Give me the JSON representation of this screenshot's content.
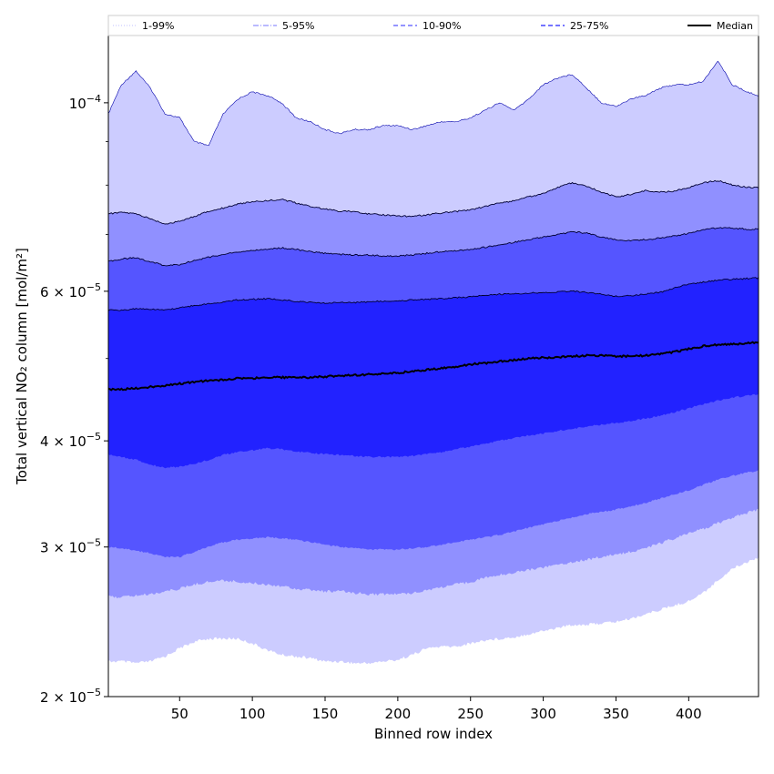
{
  "chart_data": {
    "type": "area",
    "title": "",
    "xlabel": "Binned row index",
    "ylabel": "Total vertical NO₂ column [mol/m²]",
    "xlim": [
      1,
      448
    ],
    "ylim": [
      2e-05,
      0.00012
    ],
    "y_scale": "log",
    "x_ticks": [
      50,
      100,
      150,
      200,
      250,
      300,
      350,
      400
    ],
    "y_major_ticks": [
      {
        "value": 0.0001,
        "mantissa": "",
        "exponent": "−4",
        "base": "10"
      },
      {
        "value": 6e-05,
        "mantissa": "6 × ",
        "exponent": "−5",
        "base": "10"
      },
      {
        "value": 4e-05,
        "mantissa": "4 × ",
        "exponent": "−5",
        "base": "10"
      },
      {
        "value": 3e-05,
        "mantissa": "3 × ",
        "exponent": "−5",
        "base": "10"
      },
      {
        "value": 2e-05,
        "mantissa": "2 × ",
        "exponent": "−5",
        "base": "10"
      }
    ],
    "y_minor_ticks": [
      5e-05,
      7e-05,
      8e-05,
      9e-05
    ],
    "x": [
      1,
      10,
      20,
      30,
      40,
      50,
      60,
      70,
      80,
      90,
      100,
      110,
      120,
      130,
      140,
      150,
      160,
      170,
      180,
      190,
      200,
      210,
      220,
      230,
      240,
      250,
      260,
      270,
      280,
      290,
      300,
      310,
      320,
      330,
      340,
      350,
      360,
      370,
      380,
      390,
      400,
      410,
      420,
      430,
      440,
      448
    ],
    "bands": [
      {
        "name": "1-99%",
        "color": "#ccccff",
        "lower": [
          2.2e-05,
          2.2e-05,
          2.19e-05,
          2.2e-05,
          2.23e-05,
          2.28e-05,
          2.32e-05,
          2.34e-05,
          2.34e-05,
          2.34e-05,
          2.31e-05,
          2.27e-05,
          2.24e-05,
          2.23e-05,
          2.22e-05,
          2.2e-05,
          2.2e-05,
          2.19e-05,
          2.19e-05,
          2.2e-05,
          2.21e-05,
          2.24e-05,
          2.28e-05,
          2.29e-05,
          2.29e-05,
          2.31e-05,
          2.33e-05,
          2.34e-05,
          2.35e-05,
          2.37e-05,
          2.39e-05,
          2.41e-05,
          2.43e-05,
          2.43e-05,
          2.44e-05,
          2.45e-05,
          2.47e-05,
          2.5e-05,
          2.53e-05,
          2.56e-05,
          2.59e-05,
          2.65e-05,
          2.74e-05,
          2.83e-05,
          2.88e-05,
          2.92e-05
        ],
        "upper": [
          9.7e-05,
          0.000105,
          0.000109,
          0.000104,
          9.7e-05,
          9.6e-05,
          9e-05,
          8.9e-05,
          9.7e-05,
          0.000101,
          0.000103,
          0.000102,
          0.0001,
          9.6e-05,
          9.5e-05,
          9.3e-05,
          9.2e-05,
          9.3e-05,
          9.3e-05,
          9.4e-05,
          9.4e-05,
          9.3e-05,
          9.4e-05,
          9.5e-05,
          9.5e-05,
          9.6e-05,
          9.8e-05,
          0.0001,
          9.8e-05,
          0.000101,
          0.000105,
          0.000107,
          0.000108,
          0.000104,
          0.0001,
          9.9e-05,
          0.000101,
          0.000102,
          0.000104,
          0.000105,
          0.000105,
          0.000106,
          0.000112,
          0.000105,
          0.000103,
          0.000102
        ]
      },
      {
        "name": "5-95%",
        "color": "#9090ff",
        "lower": [
          2.62e-05,
          2.62e-05,
          2.63e-05,
          2.64e-05,
          2.66e-05,
          2.68e-05,
          2.71e-05,
          2.73e-05,
          2.74e-05,
          2.73e-05,
          2.72e-05,
          2.71e-05,
          2.7e-05,
          2.68e-05,
          2.67e-05,
          2.66e-05,
          2.66e-05,
          2.65e-05,
          2.64e-05,
          2.64e-05,
          2.64e-05,
          2.65e-05,
          2.67e-05,
          2.69e-05,
          2.71e-05,
          2.73e-05,
          2.76e-05,
          2.78e-05,
          2.8e-05,
          2.82e-05,
          2.84e-05,
          2.86e-05,
          2.88e-05,
          2.9e-05,
          2.92e-05,
          2.94e-05,
          2.96e-05,
          2.99e-05,
          3.03e-05,
          3.07e-05,
          3.11e-05,
          3.15e-05,
          3.2e-05,
          3.25e-05,
          3.29e-05,
          3.32e-05
        ],
        "upper": [
          7.4e-05,
          7.43e-05,
          7.4e-05,
          7.3e-05,
          7.2e-05,
          7.25e-05,
          7.35e-05,
          7.45e-05,
          7.52e-05,
          7.6e-05,
          7.65e-05,
          7.67e-05,
          7.7e-05,
          7.62e-05,
          7.55e-05,
          7.5e-05,
          7.45e-05,
          7.45e-05,
          7.4e-05,
          7.38e-05,
          7.36e-05,
          7.35e-05,
          7.38e-05,
          7.42e-05,
          7.45e-05,
          7.48e-05,
          7.55e-05,
          7.62e-05,
          7.67e-05,
          7.75e-05,
          7.82e-05,
          7.95e-05,
          8.05e-05,
          7.97e-05,
          7.85e-05,
          7.75e-05,
          7.8e-05,
          7.88e-05,
          7.85e-05,
          7.87e-05,
          7.95e-05,
          8.05e-05,
          8.1e-05,
          8e-05,
          7.95e-05,
          7.95e-05
        ]
      },
      {
        "name": "10-90%",
        "color": "#5555ff",
        "lower": [
          3e-05,
          2.99e-05,
          2.97e-05,
          2.95e-05,
          2.92e-05,
          2.92e-05,
          2.96e-05,
          3e-05,
          3.04e-05,
          3.06e-05,
          3.07e-05,
          3.08e-05,
          3.07e-05,
          3.06e-05,
          3.04e-05,
          3.02e-05,
          3e-05,
          2.99e-05,
          2.98e-05,
          2.98e-05,
          2.98e-05,
          2.99e-05,
          3e-05,
          3.02e-05,
          3.04e-05,
          3.06e-05,
          3.08e-05,
          3.1e-05,
          3.13e-05,
          3.16e-05,
          3.19e-05,
          3.22e-05,
          3.25e-05,
          3.28e-05,
          3.3e-05,
          3.32e-05,
          3.35e-05,
          3.38e-05,
          3.42e-05,
          3.46e-05,
          3.5e-05,
          3.55e-05,
          3.6e-05,
          3.64e-05,
          3.67e-05,
          3.69e-05
        ],
        "upper": [
          6.5e-05,
          6.55e-05,
          6.57e-05,
          6.5e-05,
          6.43e-05,
          6.45e-05,
          6.52e-05,
          6.58e-05,
          6.63e-05,
          6.67e-05,
          6.7e-05,
          6.72e-05,
          6.75e-05,
          6.72e-05,
          6.68e-05,
          6.65e-05,
          6.63e-05,
          6.62e-05,
          6.62e-05,
          6.6e-05,
          6.6e-05,
          6.62e-05,
          6.65e-05,
          6.68e-05,
          6.7e-05,
          6.72e-05,
          6.76e-05,
          6.8e-05,
          6.85e-05,
          6.9e-05,
          6.95e-05,
          7e-05,
          7.05e-05,
          7.02e-05,
          6.95e-05,
          6.9e-05,
          6.88e-05,
          6.9e-05,
          6.93e-05,
          6.97e-05,
          7.02e-05,
          7.08e-05,
          7.13e-05,
          7.12e-05,
          7.1e-05,
          7.1e-05
        ]
      },
      {
        "name": "25-75%",
        "color": "#2222ff",
        "lower": [
          3.85e-05,
          3.83e-05,
          3.8e-05,
          3.75e-05,
          3.72e-05,
          3.73e-05,
          3.76e-05,
          3.8e-05,
          3.85e-05,
          3.88e-05,
          3.9e-05,
          3.92e-05,
          3.91e-05,
          3.89e-05,
          3.87e-05,
          3.86e-05,
          3.85e-05,
          3.84e-05,
          3.83e-05,
          3.83e-05,
          3.83e-05,
          3.84e-05,
          3.86e-05,
          3.88e-05,
          3.91e-05,
          3.94e-05,
          3.97e-05,
          4e-05,
          4.03e-05,
          4.06e-05,
          4.08e-05,
          4.11e-05,
          4.13e-05,
          4.16e-05,
          4.18e-05,
          4.2e-05,
          4.22e-05,
          4.25e-05,
          4.28e-05,
          4.32e-05,
          4.37e-05,
          4.42e-05,
          4.46e-05,
          4.5e-05,
          4.52e-05,
          4.54e-05
        ],
        "upper": [
          5.7e-05,
          5.7e-05,
          5.72e-05,
          5.72e-05,
          5.7e-05,
          5.74e-05,
          5.77e-05,
          5.8e-05,
          5.83e-05,
          5.86e-05,
          5.87e-05,
          5.88e-05,
          5.86e-05,
          5.84e-05,
          5.82e-05,
          5.81e-05,
          5.82e-05,
          5.82e-05,
          5.83e-05,
          5.84e-05,
          5.85e-05,
          5.86e-05,
          5.87e-05,
          5.88e-05,
          5.9e-05,
          5.91e-05,
          5.93e-05,
          5.95e-05,
          5.96e-05,
          5.97e-05,
          5.98e-05,
          5.99e-05,
          6e-05,
          5.98e-05,
          5.95e-05,
          5.92e-05,
          5.93e-05,
          5.95e-05,
          5.98e-05,
          6.05e-05,
          6.12e-05,
          6.15e-05,
          6.18e-05,
          6.2e-05,
          6.21e-05,
          6.22e-05
        ]
      }
    ],
    "median": {
      "name": "Median",
      "color": "#000000",
      "values": [
        4.6e-05,
        4.6e-05,
        4.61e-05,
        4.63e-05,
        4.65e-05,
        4.67e-05,
        4.69e-05,
        4.71e-05,
        4.72e-05,
        4.74e-05,
        4.74e-05,
        4.75e-05,
        4.75e-05,
        4.75e-05,
        4.75e-05,
        4.76e-05,
        4.77e-05,
        4.78e-05,
        4.79e-05,
        4.8e-05,
        4.81e-05,
        4.83e-05,
        4.85e-05,
        4.87e-05,
        4.89e-05,
        4.92e-05,
        4.94e-05,
        4.96e-05,
        4.98e-05,
        5e-05,
        5.01e-05,
        5.02e-05,
        5.03e-05,
        5.04e-05,
        5.04e-05,
        5.03e-05,
        5.03e-05,
        5.04e-05,
        5.06e-05,
        5.09e-05,
        5.13e-05,
        5.17e-05,
        5.19e-05,
        5.2e-05,
        5.21e-05,
        5.22e-05
      ]
    },
    "legend": {
      "placement": "top",
      "items": [
        {
          "label": "1-99%",
          "style": "dotted",
          "color": "#ccccff"
        },
        {
          "label": "5-95%",
          "style": "dashdot",
          "color": "#9090ff"
        },
        {
          "label": "10-90%",
          "style": "dashed",
          "color": "#5555ff"
        },
        {
          "label": "25-75%",
          "style": "dashed",
          "color": "#2222ff"
        },
        {
          "label": "Median",
          "style": "solid",
          "color": "#000000"
        }
      ]
    },
    "grid": false
  }
}
